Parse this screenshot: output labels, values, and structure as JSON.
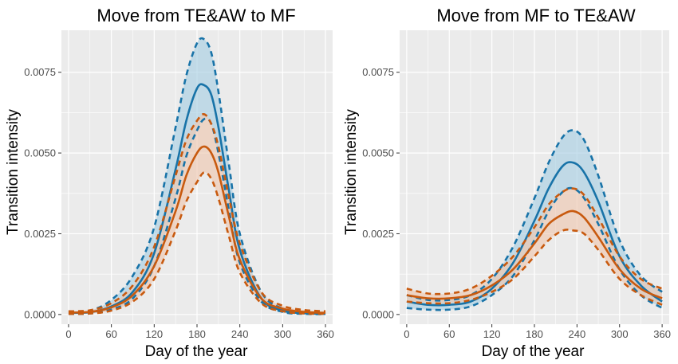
{
  "figure": {
    "ylabel": "Transition intensity",
    "xlabel": "Day of the year"
  },
  "colors": {
    "panel_bg": "#EBEBEB",
    "grid": "#FFFFFF",
    "blue": "#1873A8",
    "blue_fill": "#A9CFE3",
    "orange": "#C85A0F",
    "orange_fill": "#EEC8B0",
    "tick_text": "#4D4D4D"
  },
  "chart_data": [
    {
      "type": "line",
      "title": "Move from TE&AW to MF",
      "xlabel": "Day of the year",
      "ylabel": "Transition intensity",
      "xlim": [
        -10,
        370
      ],
      "ylim": [
        -0.0003,
        0.0088
      ],
      "x_ticks": [
        0,
        60,
        120,
        180,
        240,
        300,
        360
      ],
      "x_tick_labels": [
        "0",
        "60",
        "120",
        "180",
        "240",
        "300",
        "360"
      ],
      "y_ticks": [
        0,
        0.0025,
        0.005,
        0.0075
      ],
      "y_tick_labels": [
        "0.0000",
        "0.0025",
        "0.0050",
        "0.0075"
      ],
      "grid": true,
      "legend": "none",
      "x": [
        0,
        30,
        60,
        90,
        120,
        150,
        165,
        180,
        190,
        200,
        210,
        225,
        240,
        270,
        300,
        330,
        360
      ],
      "series": [
        {
          "color": "blue",
          "values": [
            5e-05,
            7e-05,
            0.00025,
            0.0007,
            0.0019,
            0.0045,
            0.006,
            0.007,
            0.0071,
            0.0068,
            0.0058,
            0.0038,
            0.002,
            0.0005,
            0.00012,
            4e-05,
            2e-05
          ],
          "lower": [
            2e-05,
            3e-05,
            0.00015,
            0.0005,
            0.0015,
            0.0036,
            0.0049,
            0.0057,
            0.00605,
            0.0059,
            0.005,
            0.0032,
            0.0016,
            0.0004,
            8e-05,
            2e-05,
            1e-05
          ],
          "upper": [
            0.0001,
            0.00012,
            0.00045,
            0.0012,
            0.0027,
            0.0058,
            0.0074,
            0.0084,
            0.00852,
            0.0081,
            0.0069,
            0.0046,
            0.0025,
            0.0007,
            0.00018,
            7e-05,
            4e-05
          ]
        },
        {
          "color": "orange",
          "values": [
            6e-05,
            8e-05,
            0.00022,
            0.0006,
            0.0015,
            0.0032,
            0.0043,
            0.005,
            0.0052,
            0.005,
            0.0044,
            0.003,
            0.0017,
            0.0005,
            0.00018,
            8e-05,
            5e-05
          ],
          "lower": [
            2e-05,
            3e-05,
            0.00012,
            0.0004,
            0.0011,
            0.0026,
            0.0035,
            0.0041,
            0.0044,
            0.0042,
            0.0036,
            0.0024,
            0.0013,
            0.00035,
            0.0001,
            3e-05,
            2e-05
          ],
          "upper": [
            0.0001,
            0.00013,
            0.00035,
            0.0009,
            0.0021,
            0.0043,
            0.0054,
            0.006,
            0.0062,
            0.0059,
            0.0052,
            0.0036,
            0.0022,
            0.0007,
            0.00027,
            0.00014,
            0.0001
          ]
        }
      ]
    },
    {
      "type": "line",
      "title": "Move from MF to TE&AW",
      "xlabel": "Day of the year",
      "ylabel": "Transition intensity",
      "xlim": [
        -10,
        370
      ],
      "ylim": [
        -0.0003,
        0.0088
      ],
      "x_ticks": [
        0,
        60,
        120,
        180,
        240,
        300,
        360
      ],
      "x_tick_labels": [
        "0",
        "60",
        "120",
        "180",
        "240",
        "300",
        "360"
      ],
      "y_ticks": [
        0,
        0.0025,
        0.005,
        0.0075
      ],
      "y_tick_labels": [
        "0.0000",
        "0.0025",
        "0.0050",
        "0.0075"
      ],
      "grid": true,
      "legend": "none",
      "x": [
        0,
        30,
        60,
        90,
        120,
        150,
        180,
        200,
        220,
        235,
        250,
        270,
        300,
        330,
        360
      ],
      "series": [
        {
          "color": "blue",
          "values": [
            0.0004,
            0.0003,
            0.0003,
            0.0004,
            0.0008,
            0.0016,
            0.0029,
            0.0039,
            0.0046,
            0.0047,
            0.0044,
            0.0035,
            0.0018,
            0.0009,
            0.0004
          ],
          "lower": [
            0.0002,
            0.00015,
            0.00015,
            0.00025,
            0.0006,
            0.0012,
            0.0023,
            0.0032,
            0.0038,
            0.0039,
            0.0036,
            0.0028,
            0.0014,
            0.0006,
            0.0002
          ],
          "upper": [
            0.0006,
            0.00045,
            0.00045,
            0.0006,
            0.0011,
            0.0021,
            0.0036,
            0.0047,
            0.0055,
            0.0057,
            0.0054,
            0.0043,
            0.0023,
            0.0012,
            0.0007
          ]
        },
        {
          "color": "orange",
          "values": [
            0.0006,
            0.0005,
            0.0005,
            0.0006,
            0.0009,
            0.0014,
            0.0022,
            0.0028,
            0.0031,
            0.0032,
            0.003,
            0.0024,
            0.0014,
            0.0008,
            0.0005
          ],
          "lower": [
            0.0004,
            0.00035,
            0.00035,
            0.00045,
            0.0007,
            0.0011,
            0.0018,
            0.0023,
            0.0026,
            0.0026,
            0.0025,
            0.002,
            0.0011,
            0.0006,
            0.0003
          ],
          "upper": [
            0.0008,
            0.00065,
            0.00065,
            0.0008,
            0.0012,
            0.0018,
            0.0027,
            0.0034,
            0.0038,
            0.0039,
            0.0037,
            0.003,
            0.0018,
            0.0011,
            0.0008
          ]
        }
      ]
    }
  ]
}
